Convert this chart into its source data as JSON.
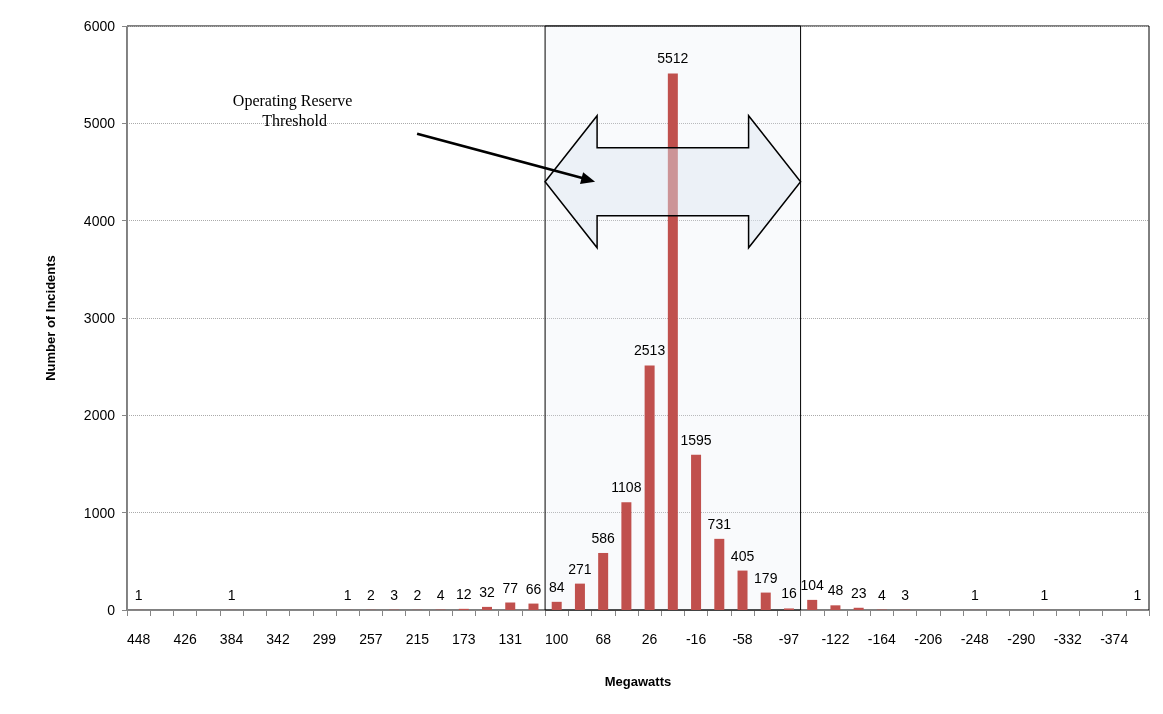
{
  "chart_data": {
    "type": "bar",
    "xlabel": "Megawatts",
    "ylabel": "Number of Incidents",
    "categories": [
      "448",
      null,
      "426",
      null,
      "384",
      null,
      "342",
      null,
      "299",
      null,
      "257",
      null,
      "215",
      null,
      "173",
      null,
      "131",
      null,
      "100",
      null,
      "68",
      null,
      "26",
      null,
      "-16",
      null,
      "-58",
      null,
      "-97",
      null,
      "-122",
      null,
      "-164",
      null,
      "-206",
      null,
      "-248",
      null,
      "-290",
      null,
      "-332",
      null,
      "-374",
      null
    ],
    "values": [
      1,
      null,
      null,
      null,
      1,
      null,
      null,
      null,
      null,
      1,
      2,
      3,
      2,
      4,
      12,
      32,
      77,
      66,
      84,
      271,
      586,
      1108,
      2513,
      5512,
      1595,
      731,
      405,
      179,
      16,
      104,
      48,
      23,
      4,
      3,
      null,
      null,
      1,
      null,
      null,
      1,
      null,
      null,
      null,
      1
    ],
    "color": "#c0504d",
    "ylim": [
      0,
      6000
    ],
    "yticks": [
      0,
      1000,
      2000,
      3000,
      4000,
      5000,
      6000
    ],
    "grid": "y",
    "data_labels": true,
    "bands": [
      {
        "axis": "x",
        "from": "100",
        "to": "-97",
        "label": "Operating Reserve Threshold"
      }
    ]
  }
}
